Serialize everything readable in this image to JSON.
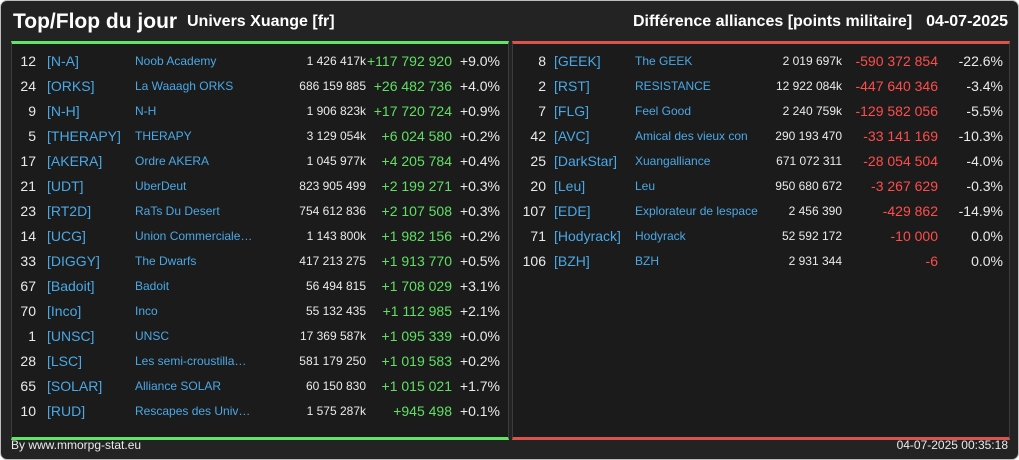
{
  "header": {
    "title": "Top/Flop du jour",
    "universe": "Univers Xuange [fr]",
    "category": "Différence alliances [points militaire]",
    "date": "04-07-2025"
  },
  "colors": {
    "background": "#232323",
    "positive": "#5fe063",
    "negative": "#ff4c4c",
    "tag": "#4aa8e6",
    "top_border": "#62e36a",
    "flop_border": "#d9534f"
  },
  "top": [
    {
      "rank": "12",
      "tag": "[N-A]",
      "name": "Noob Academy",
      "points": "1 426 417k",
      "diff": "+117 792 920",
      "pct": "+9.0%"
    },
    {
      "rank": "24",
      "tag": "[ORKS]",
      "name": "La Waaagh ORKS",
      "points": "686 159 885",
      "diff": "+26 482 736",
      "pct": "+4.0%"
    },
    {
      "rank": "9",
      "tag": "[N-H]",
      "name": "N-H",
      "points": "1 906 823k",
      "diff": "+17 720 724",
      "pct": "+0.9%"
    },
    {
      "rank": "5",
      "tag": "[THERAPY]",
      "name": "THERAPY",
      "points": "3 129 054k",
      "diff": "+6 024 580",
      "pct": "+0.2%"
    },
    {
      "rank": "17",
      "tag": "[AKERA]",
      "name": "Ordre AKERA",
      "points": "1 045 977k",
      "diff": "+4 205 784",
      "pct": "+0.4%"
    },
    {
      "rank": "21",
      "tag": "[UDT]",
      "name": "UberDeut",
      "points": "823 905 499",
      "diff": "+2 199 271",
      "pct": "+0.3%"
    },
    {
      "rank": "23",
      "tag": "[RT2D]",
      "name": "RaTs Du Desert",
      "points": "754 612 836",
      "diff": "+2 107 508",
      "pct": "+0.3%"
    },
    {
      "rank": "14",
      "tag": "[UCG]",
      "name": "Union Commerciale…",
      "points": "1 143 800k",
      "diff": "+1 982 156",
      "pct": "+0.2%"
    },
    {
      "rank": "33",
      "tag": "[DIGGY]",
      "name": "The Dwarfs",
      "points": "417 213 275",
      "diff": "+1 913 770",
      "pct": "+0.5%"
    },
    {
      "rank": "67",
      "tag": "[Badoit]",
      "name": "Badoit",
      "points": "56 494 815",
      "diff": "+1 708 029",
      "pct": "+3.1%"
    },
    {
      "rank": "70",
      "tag": "[Inco]",
      "name": "Inco",
      "points": "55 132 435",
      "diff": "+1 112 985",
      "pct": "+2.1%"
    },
    {
      "rank": "1",
      "tag": "[UNSC]",
      "name": "UNSC",
      "points": "17 369 587k",
      "diff": "+1 095 339",
      "pct": "+0.0%"
    },
    {
      "rank": "28",
      "tag": "[LSC]",
      "name": "Les semi-croustilla…",
      "points": "581 179 250",
      "diff": "+1 019 583",
      "pct": "+0.2%"
    },
    {
      "rank": "65",
      "tag": "[SOLAR]",
      "name": "Alliance SOLAR",
      "points": "60 150 830",
      "diff": "+1 015 021",
      "pct": "+1.7%"
    },
    {
      "rank": "10",
      "tag": "[RUD]",
      "name": "Rescapes des Univ…",
      "points": "1 575 287k",
      "diff": "+945 498",
      "pct": "+0.1%"
    }
  ],
  "flop": [
    {
      "rank": "8",
      "tag": "[GEEK]",
      "name": "The GEEK",
      "points": "2 019 697k",
      "diff": "-590 372 854",
      "pct": "-22.6%"
    },
    {
      "rank": "2",
      "tag": "[RST]",
      "name": "RESISTANCE",
      "points": "12 922 084k",
      "diff": "-447 640 346",
      "pct": "-3.4%"
    },
    {
      "rank": "7",
      "tag": "[FLG]",
      "name": "Feel Good",
      "points": "2 240 759k",
      "diff": "-129 582 056",
      "pct": "-5.5%"
    },
    {
      "rank": "42",
      "tag": "[AVC]",
      "name": "Amical des vieux con",
      "points": "290 193 470",
      "diff": "-33 141 169",
      "pct": "-10.3%"
    },
    {
      "rank": "25",
      "tag": "[DarkStar]",
      "name": "Xuangalliance",
      "points": "671 072 311",
      "diff": "-28 054 504",
      "pct": "-4.0%"
    },
    {
      "rank": "20",
      "tag": "[Leu]",
      "name": "Leu",
      "points": "950 680 672",
      "diff": "-3 267 629",
      "pct": "-0.3%"
    },
    {
      "rank": "107",
      "tag": "[EDE]",
      "name": "Explorateur de lespace",
      "points": "2 456 390",
      "diff": "-429 862",
      "pct": "-14.9%"
    },
    {
      "rank": "71",
      "tag": "[Hodyrack]",
      "name": "Hodyrack",
      "points": "52 592 172",
      "diff": "-10 000",
      "pct": "0.0%"
    },
    {
      "rank": "106",
      "tag": "[BZH]",
      "name": "BZH",
      "points": "2 931 344",
      "diff": "-6",
      "pct": "0.0%"
    }
  ],
  "footer": {
    "credit": "By www.mmorpg-stat.eu",
    "timestamp": "04-07-2025 00:35:18"
  }
}
